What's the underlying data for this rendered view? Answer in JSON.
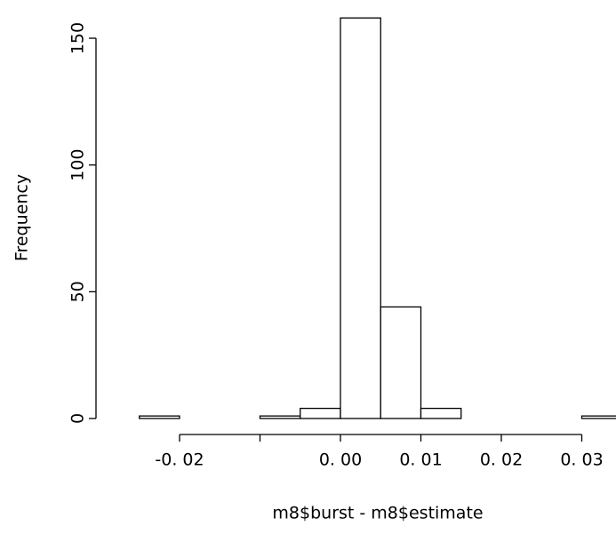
{
  "chart_data": {
    "type": "histogram",
    "x_label": "m8$burst - m8$estimate",
    "y_label": "Frequency",
    "bins": [
      -0.025,
      -0.02,
      -0.015,
      -0.01,
      -0.005,
      0,
      0.005,
      0.01,
      0.015,
      0.02,
      0.025,
      0.03,
      0.035
    ],
    "values": [
      1,
      0,
      0,
      1,
      4,
      158,
      44,
      4,
      0,
      0,
      0,
      1
    ],
    "color": "#ffffff",
    "ylim": [
      0,
      158
    ],
    "yticks": [
      0,
      50,
      100,
      150
    ],
    "xticks": [
      {
        "value": -0.02,
        "label": "-0. 02"
      },
      {
        "value": -0.01,
        "label": null
      },
      {
        "value": 0,
        "label": "0. 00"
      },
      {
        "value": 0.01,
        "label": "0. 01"
      },
      {
        "value": 0.02,
        "label": "0. 02"
      },
      {
        "value": 0.03,
        "label": "0. 03"
      }
    ],
    "grid": false
  }
}
